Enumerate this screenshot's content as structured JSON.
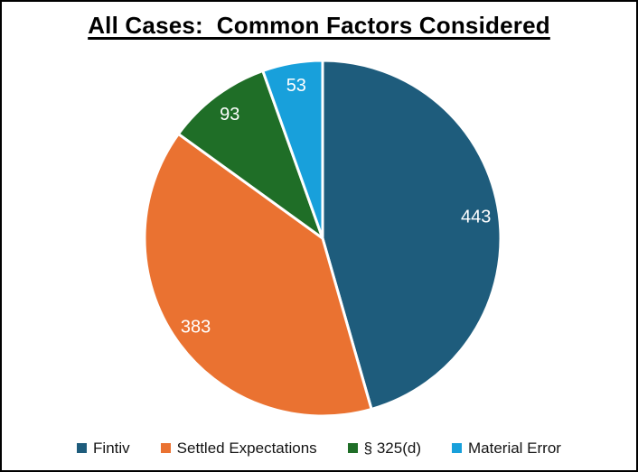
{
  "title": "All Cases:  Common Factors Considered",
  "chart_data": {
    "type": "pie",
    "title": "All Cases:  Common Factors Considered",
    "labels": [
      "Fintiv",
      "Settled Expectations",
      "§ 325(d)",
      "Material Error"
    ],
    "values": [
      443,
      383,
      93,
      53
    ],
    "colors": [
      "#1E5C7C",
      "#EA7231",
      "#1F6E27",
      "#18A0DB"
    ],
    "value_label_color": "#FFFFFF",
    "slice_border_color": "#FFFFFF",
    "start_angle_deg": 0,
    "direction": "clockwise",
    "legend_position": "bottom"
  }
}
